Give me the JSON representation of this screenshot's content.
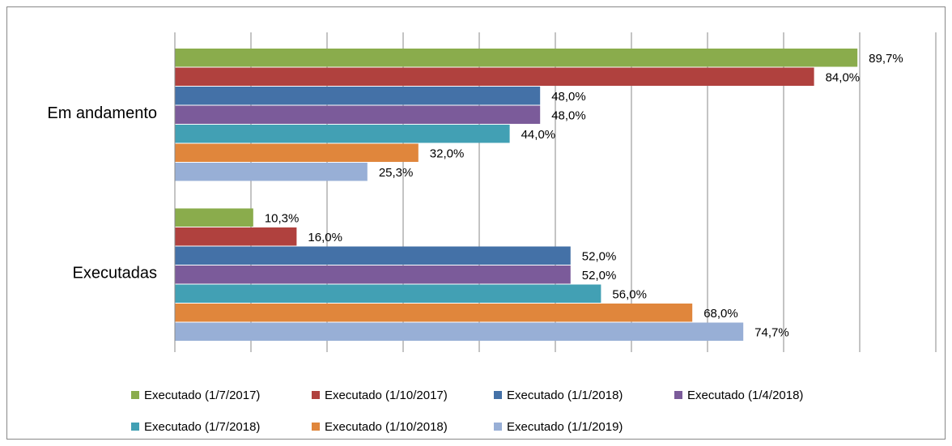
{
  "chart_data": {
    "type": "hbar",
    "categories": [
      "Em andamento",
      "Executadas"
    ],
    "series": [
      {
        "name": "Executado (1/7/2017)",
        "color": "#8aac4c",
        "values": [
          89.7,
          10.3
        ],
        "value_labels": [
          "89,7%",
          "10,3%"
        ]
      },
      {
        "name": "Executado (1/10/2017)",
        "color": "#b0413e",
        "values": [
          84.0,
          16.0
        ],
        "value_labels": [
          "84,0%",
          "16,0%"
        ]
      },
      {
        "name": "Executado (1/1/2018)",
        "color": "#4471a7",
        "values": [
          48.0,
          52.0
        ],
        "value_labels": [
          "48,0%",
          "52,0%"
        ]
      },
      {
        "name": "Executado (1/4/2018)",
        "color": "#7b5b9a",
        "values": [
          48.0,
          52.0
        ],
        "value_labels": [
          "48,0%",
          "52,0%"
        ]
      },
      {
        "name": "Executado (1/7/2018)",
        "color": "#42a0b4",
        "values": [
          44.0,
          56.0
        ],
        "value_labels": [
          "44,0%",
          "56,0%"
        ]
      },
      {
        "name": "Executado (1/10/2018)",
        "color": "#e0863c",
        "values": [
          32.0,
          68.0
        ],
        "value_labels": [
          "32,0%",
          "68,0%"
        ]
      },
      {
        "name": "Executado (1/1/2019)",
        "color": "#98afd6",
        "values": [
          25.3,
          74.7
        ],
        "value_labels": [
          "25,3%",
          "74,7%"
        ]
      }
    ],
    "xlim": [
      0,
      100
    ],
    "xticks": [
      0,
      10,
      20,
      30,
      40,
      50,
      60,
      70,
      80,
      90,
      100
    ],
    "grid": true,
    "legend": "bottom"
  }
}
